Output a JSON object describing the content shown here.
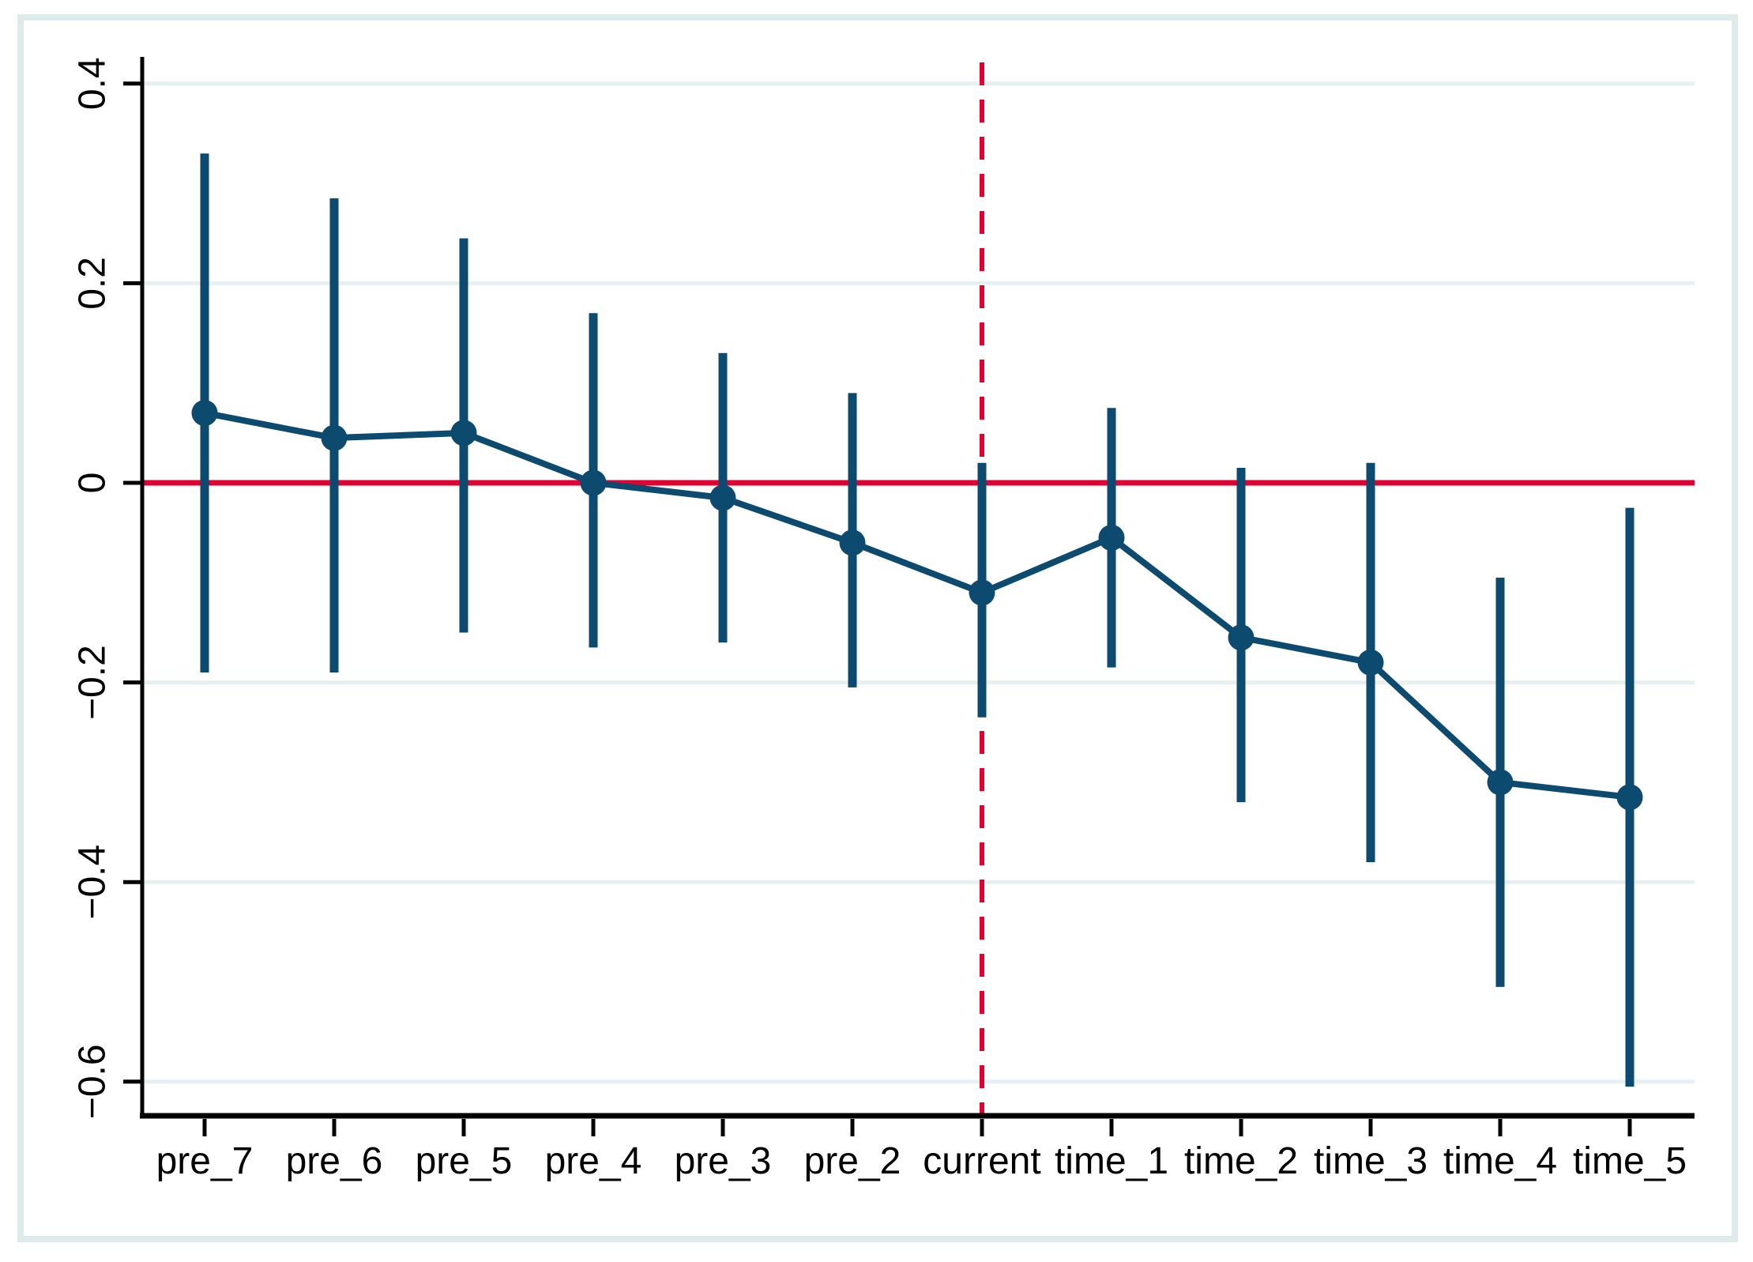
{
  "chart_data": {
    "type": "line",
    "subtype": "event-study-coefficient-plot",
    "title": "",
    "xlabel": "",
    "ylabel": "",
    "categories": [
      "pre_7",
      "pre_6",
      "pre_5",
      "pre_4",
      "pre_3",
      "pre_2",
      "current",
      "time_1",
      "time_2",
      "time_3",
      "time_4",
      "time_5"
    ],
    "series": [
      {
        "name": "point_estimate",
        "values": [
          0.07,
          0.045,
          0.05,
          0.0,
          -0.015,
          -0.06,
          -0.11,
          -0.055,
          -0.155,
          -0.18,
          -0.3,
          -0.315
        ]
      },
      {
        "name": "ci_upper",
        "values": [
          0.33,
          0.285,
          0.245,
          0.17,
          0.13,
          0.09,
          0.02,
          0.075,
          0.015,
          0.02,
          -0.095,
          -0.025
        ]
      },
      {
        "name": "ci_lower",
        "values": [
          -0.19,
          -0.19,
          -0.15,
          -0.165,
          -0.16,
          -0.205,
          -0.235,
          -0.185,
          -0.32,
          -0.38,
          -0.505,
          -0.605
        ]
      }
    ],
    "yticks": {
      "values": [
        0.4,
        0.2,
        0,
        -0.2,
        -0.4,
        -0.6
      ],
      "labels": [
        "0.4",
        "0.2",
        "0",
        "−0.2",
        "−0.4",
        "−0.6"
      ]
    },
    "ylim": [
      -0.64,
      0.43
    ],
    "grid": true,
    "legend": false,
    "reference_lines": {
      "horizontal": {
        "y": 0,
        "style": "solid"
      },
      "vertical": {
        "at_category": "current",
        "style": "dashed"
      }
    },
    "colors": {
      "series": "#0d4a6f",
      "reference": "#e00331",
      "grid": "#e7f0f1",
      "axis": "#000000",
      "frame": "#dfeaeb",
      "background": "#ffffff"
    }
  }
}
